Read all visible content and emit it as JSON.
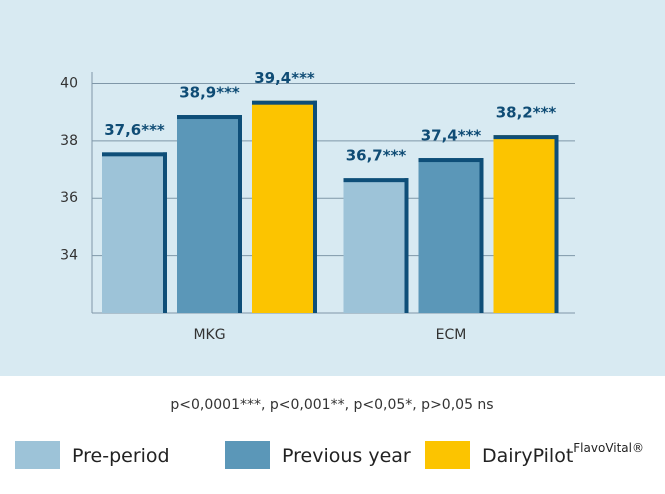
{
  "chart_data": {
    "type": "bar",
    "categories": [
      "MKG",
      "ECM"
    ],
    "series": [
      {
        "name": "Pre-period",
        "color": "#9dc3d8",
        "values": [
          37.6,
          36.7
        ],
        "value_labels": [
          "37,6***",
          "36,7***"
        ]
      },
      {
        "name": "Previous year",
        "color": "#5b97b8",
        "values": [
          38.9,
          37.4
        ],
        "value_labels": [
          "38,9***",
          "37,4***"
        ]
      },
      {
        "name": "DairyPilot",
        "name_superscript": "FlavoVital®",
        "color": "#fcc400",
        "values": [
          39.4,
          38.2
        ],
        "value_labels": [
          "39,4***",
          "38,2***"
        ]
      }
    ],
    "ylim": [
      32,
      40.4
    ],
    "yticks": [
      34,
      36,
      38,
      40
    ],
    "grid": true,
    "footnote": "p<0,0001***, p<0,001**, p<0,05*, p>0,05 ns"
  }
}
